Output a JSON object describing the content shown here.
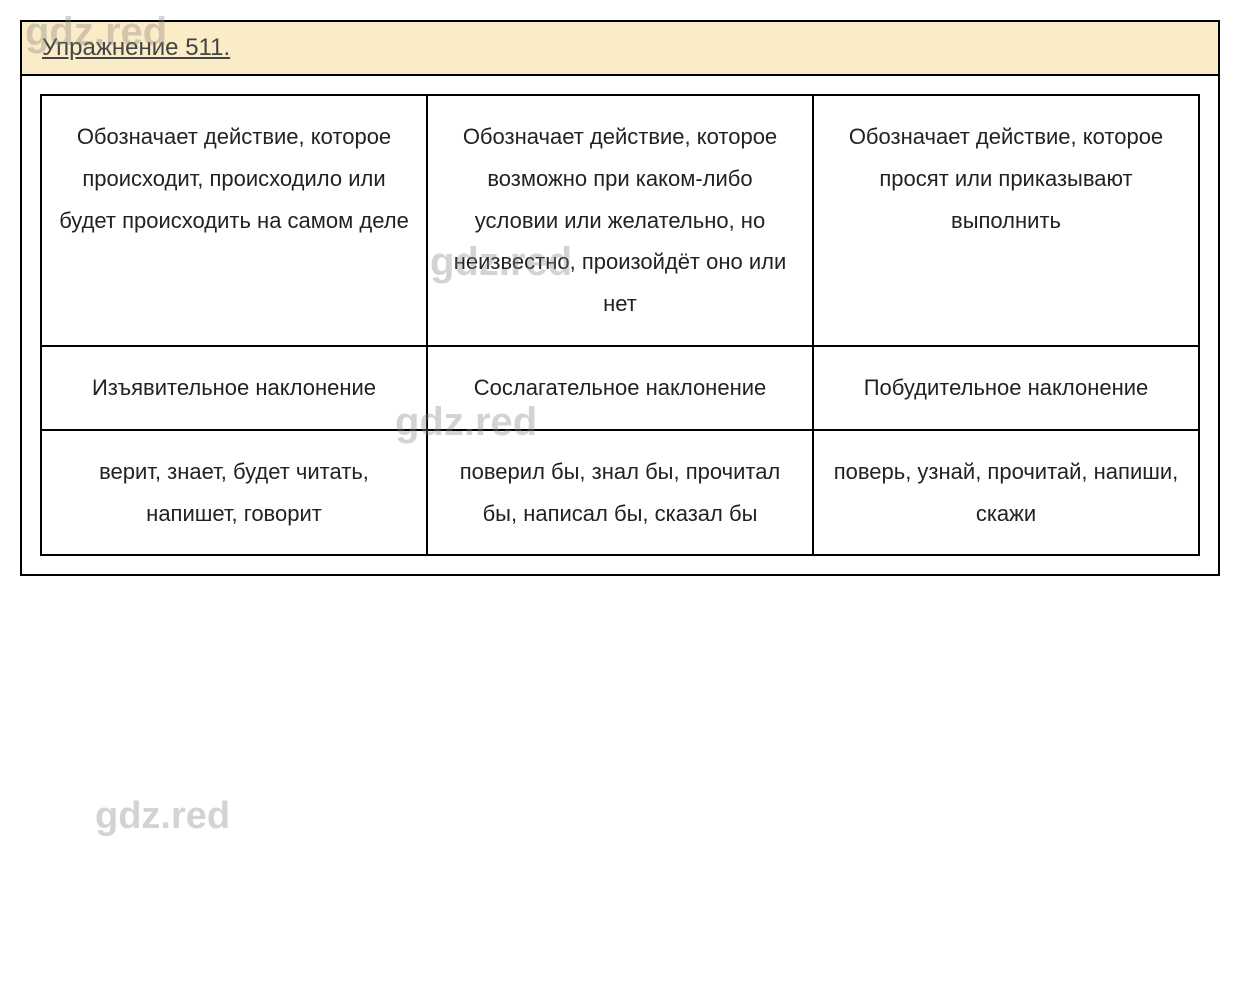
{
  "watermark_text": "gdz.red",
  "watermark_color": "rgba(128,128,128,0.35)",
  "header": {
    "title": "Упражнение 511.",
    "background_color": "#faecc7",
    "text_color": "#444444",
    "underline": true,
    "font_size": 24
  },
  "table": {
    "border_color": "#000000",
    "background_color": "#ffffff",
    "cell_font_size": 22,
    "cell_text_color": "#222222",
    "columns": 3,
    "rows": [
      {
        "cells": [
          "Обозначает действие, которое происходит, происходило или будет происходить на самом деле",
          "Обозначает действие, которое возможно при каком-либо условии или желательно, но неизвестно, произойдёт оно или нет",
          "Обозначает действие, которое просят или приказывают выполнить"
        ]
      },
      {
        "cells": [
          "Изъявительное наклонение",
          "Сослагательное наклонение",
          "Побудительное наклонение"
        ]
      },
      {
        "cells": [
          "верит, знает, будет читать, напишет, говорит",
          "поверил бы, знал бы, прочитал бы, написал бы, сказал бы",
          "поверь, узнай, прочитай, напиши, скажи"
        ]
      }
    ]
  }
}
